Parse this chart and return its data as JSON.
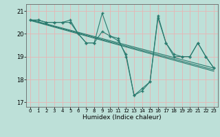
{
  "x": [
    0,
    1,
    2,
    3,
    4,
    5,
    6,
    7,
    8,
    9,
    10,
    11,
    12,
    13,
    14,
    15,
    16,
    17,
    18,
    19,
    20,
    21,
    22,
    23
  ],
  "series1": [
    20.6,
    20.6,
    20.5,
    20.5,
    20.5,
    20.5,
    20.0,
    19.6,
    19.6,
    20.1,
    19.9,
    19.8,
    19.0,
    17.3,
    17.6,
    17.9,
    20.7,
    19.6,
    19.1,
    19.0,
    19.0,
    19.6,
    19.0,
    18.5
  ],
  "series2": [
    20.6,
    20.6,
    20.5,
    20.5,
    20.5,
    20.6,
    20.0,
    19.6,
    19.6,
    20.9,
    19.9,
    19.7,
    19.1,
    17.3,
    17.5,
    17.9,
    20.8,
    19.6,
    19.0,
    19.0,
    19.0,
    19.6,
    19.0,
    18.5
  ],
  "trend1_y": [
    20.62,
    18.5
  ],
  "trend2_y": [
    20.6,
    18.42
  ],
  "trend3_y": [
    20.58,
    18.36
  ],
  "line_color": "#2a7a6e",
  "bg_color": "#bde0d8",
  "grid_color": "#e8b4b4",
  "xlabel": "Humidex (Indice chaleur)",
  "ylim": [
    16.8,
    21.3
  ],
  "xlim": [
    -0.5,
    23.5
  ],
  "yticks": [
    17,
    18,
    19,
    20,
    21
  ],
  "xticks": [
    0,
    1,
    2,
    3,
    4,
    5,
    6,
    7,
    8,
    9,
    10,
    11,
    12,
    13,
    14,
    15,
    16,
    17,
    18,
    19,
    20,
    21,
    22,
    23
  ],
  "xtick_labels": [
    "0",
    "1",
    "2",
    "3",
    "4",
    "5",
    "6",
    "7",
    "8",
    "9",
    "10",
    "11",
    "12",
    "13",
    "14",
    "15",
    "16",
    "17",
    "18",
    "19",
    "20",
    "21",
    "22",
    "23"
  ]
}
